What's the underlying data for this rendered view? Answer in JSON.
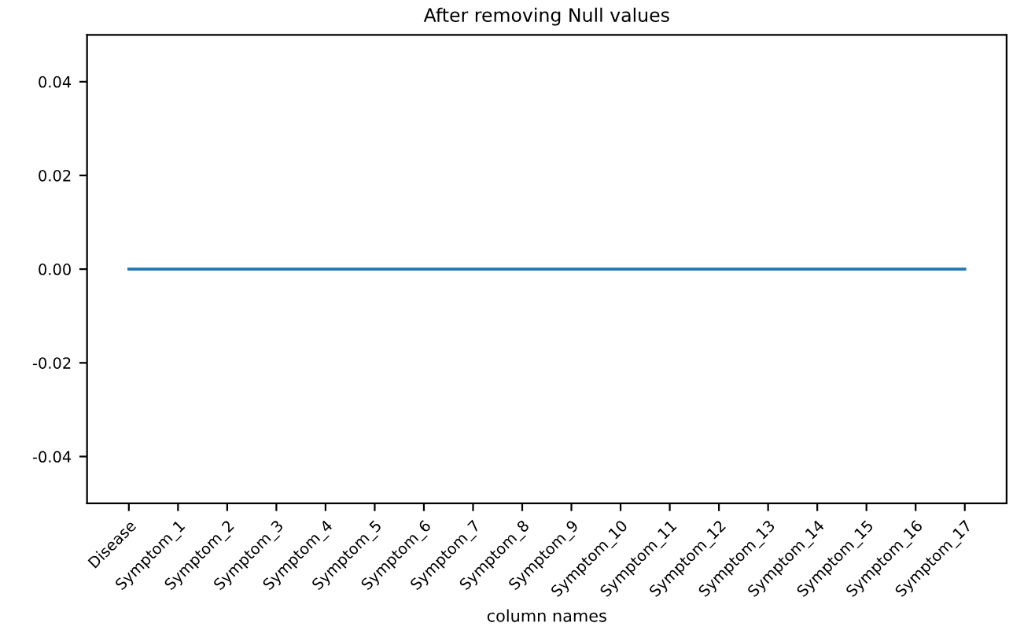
{
  "chart_data": {
    "type": "line",
    "title": "After removing Null values",
    "xlabel": "column names",
    "categories": [
      "Disease",
      "Symptom_1",
      "Symptom_2",
      "Symptom_3",
      "Symptom_4",
      "Symptom_5",
      "Symptom_6",
      "Symptom_7",
      "Symptom_8",
      "Symptom_9",
      "Symptom_10",
      "Symptom_11",
      "Symptom_12",
      "Symptom_13",
      "Symptom_14",
      "Symptom_15",
      "Symptom_16",
      "Symptom_17"
    ],
    "series": [
      {
        "color": "#1f77b4",
        "values": [
          0,
          0,
          0,
          0,
          0,
          0,
          0,
          0,
          0,
          0,
          0,
          0,
          0,
          0,
          0,
          0,
          0,
          0
        ]
      }
    ],
    "ylim": [
      -0.05,
      0.05
    ],
    "yticks": [
      {
        "value": -0.04,
        "label": "-0.04"
      },
      {
        "value": -0.02,
        "label": "-0.02"
      },
      {
        "value": 0.0,
        "label": "0.00"
      },
      {
        "value": 0.02,
        "label": "0.02"
      },
      {
        "value": 0.04,
        "label": "0.04"
      }
    ],
    "grid": false,
    "legend": false,
    "marker": "none",
    "line_style": "solid"
  }
}
